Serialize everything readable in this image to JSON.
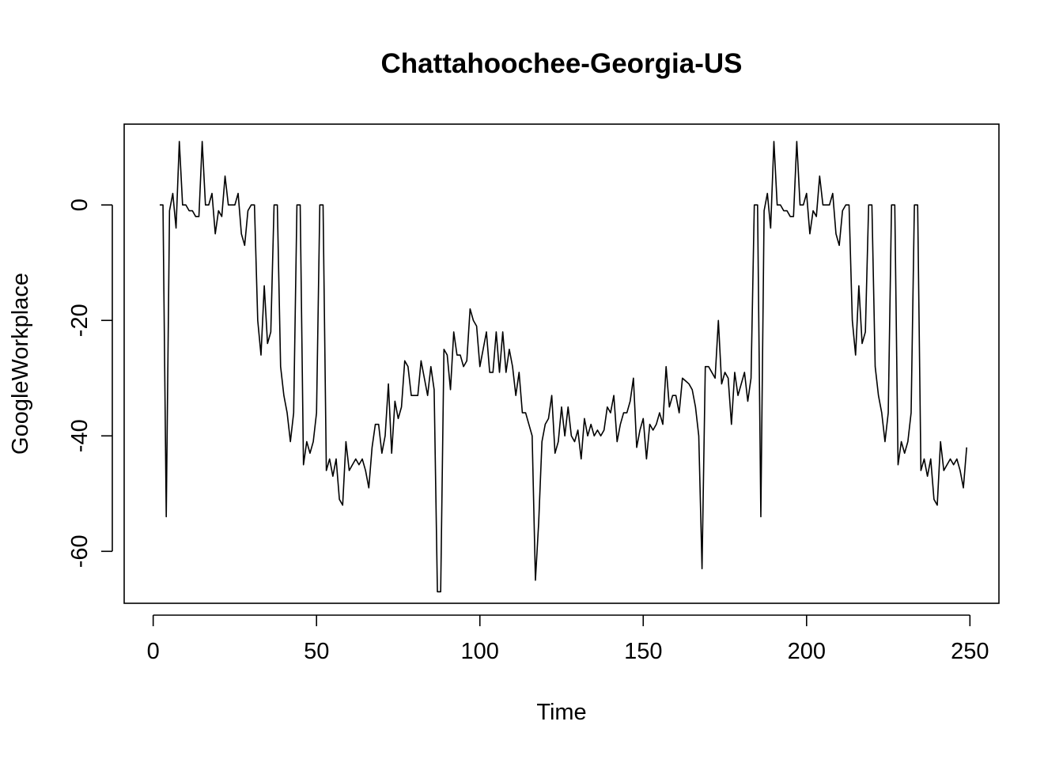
{
  "chart_data": {
    "type": "line",
    "title": "Chattahoochee-Georgia-US",
    "xlabel": "Time",
    "ylabel": "GoogleWorkplace",
    "xlim": [
      -8.88,
      258.88
    ],
    "ylim": [
      -69.0,
      14.0
    ],
    "x_ticks": [
      0,
      50,
      100,
      150,
      200,
      250
    ],
    "y_ticks": [
      0,
      -20,
      -40,
      -60
    ],
    "grid": false,
    "legend": "none",
    "line_color": "#000000",
    "series": [
      {
        "x_start": 2,
        "values": [
          0,
          0,
          -54,
          -1,
          2,
          -4,
          11,
          0,
          0,
          -1,
          -1,
          -2,
          -2,
          11,
          0,
          0,
          2,
          -5,
          -1,
          -2,
          5,
          0,
          0,
          0,
          2,
          -5,
          -7,
          -1,
          0,
          0,
          -20,
          -26,
          -14,
          -24,
          -22,
          0,
          0,
          -28,
          -33,
          -36,
          -41,
          -36,
          0,
          0,
          -45,
          -41,
          -43,
          -41,
          -36,
          0,
          0,
          -46,
          -44,
          -47,
          -44,
          -51,
          -52,
          -41,
          -46,
          -45,
          -44,
          -45,
          -44,
          -46,
          -49,
          -42,
          -38,
          -38,
          -43,
          -40,
          -31,
          -43,
          -34,
          -37,
          -35,
          -27,
          -28,
          -33,
          -33,
          -33,
          -27,
          -30,
          -33,
          -28,
          -32,
          -67,
          -67,
          -25,
          -26,
          -32,
          -22,
          -26,
          -26,
          -28,
          -27,
          -18,
          -20,
          -21,
          -28,
          -25,
          -22,
          -29,
          -29,
          -22,
          -29,
          -22,
          -29,
          -25,
          -28,
          -33,
          -29,
          -36,
          -36,
          -38,
          -40,
          -65,
          -55,
          -41,
          -38,
          -37,
          -33,
          -43,
          -41,
          -35,
          -40,
          -35,
          -40,
          -41,
          -39,
          -44,
          -37,
          -40,
          -38,
          -40,
          -39,
          -40,
          -39,
          -35,
          -36,
          -33,
          -41,
          -38,
          -36,
          -36,
          -34,
          -30,
          -42,
          -39,
          -37,
          -44,
          -38,
          -39,
          -38,
          -36,
          -38,
          -28,
          -35,
          -33,
          -33,
          -36,
          -30,
          -30.5,
          -31,
          -32,
          -35,
          -40,
          -63,
          -28,
          -28,
          -29,
          -30,
          -20,
          -31,
          -29,
          -30,
          -38,
          -29,
          -33,
          -31,
          -29,
          -34,
          -30,
          0,
          0,
          -54,
          -1,
          2,
          -4,
          11,
          0,
          0,
          -1,
          -1,
          -2,
          -2,
          11,
          0,
          0,
          2,
          -5,
          -1,
          -2,
          5,
          0,
          0,
          0,
          2,
          -5,
          -7,
          -1,
          0,
          0,
          -20,
          -26,
          -14,
          -24,
          -22,
          0,
          0,
          -28,
          -33,
          -36,
          -41,
          -36,
          0,
          0,
          -45,
          -41,
          -43,
          -41,
          -36,
          0,
          0,
          -46,
          -44,
          -47,
          -44,
          -51,
          -52,
          -41,
          -46,
          -45,
          -44,
          -45,
          -44,
          -46,
          -49,
          -42
        ]
      }
    ]
  }
}
